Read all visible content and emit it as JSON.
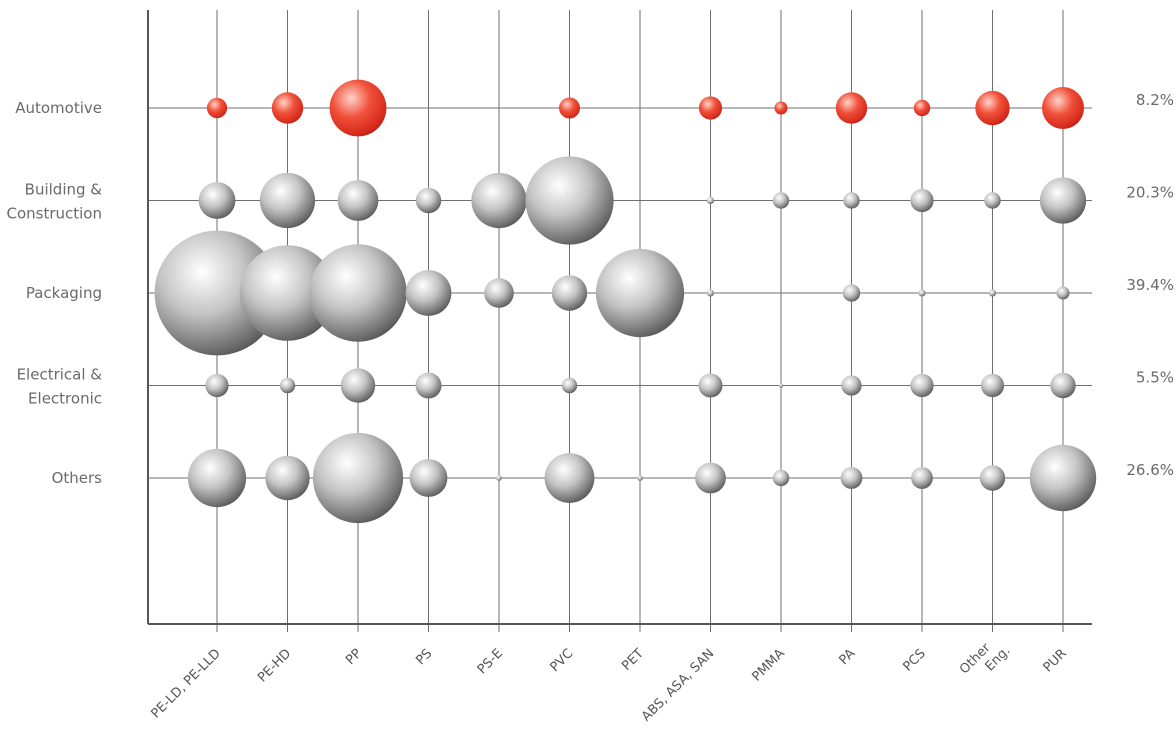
{
  "chart_data": {
    "type": "bubble",
    "title": "",
    "xlabel": "",
    "ylabel": "",
    "categories": [
      "PE-LD, PE-LLD",
      "PE-HD",
      "PP",
      "PS",
      "PS-E",
      "PVC",
      "PET",
      "ABS, ASA, SAN",
      "PMMA",
      "PA",
      "PCS",
      "Other Eng.",
      "PUR"
    ],
    "rows": [
      {
        "label": "Automotive",
        "share": "8.2%",
        "color": "#e8392a",
        "values": [
          1.2,
          2.9,
          9.5,
          null,
          null,
          1.3,
          null,
          1.6,
          0.5,
          2.9,
          0.8,
          3.5,
          5.2
        ]
      },
      {
        "label": "Building & Construction",
        "share": "20.3%",
        "color": "#b8b8b8",
        "values": [
          4.0,
          9.0,
          4.9,
          1.9,
          9.0,
          23.0,
          null,
          0.15,
          0.8,
          0.8,
          1.6,
          0.8,
          6.3
        ]
      },
      {
        "label": "Packaging",
        "share": "39.4%",
        "color": "#b8b8b8",
        "values": [
          46.0,
          27.0,
          28.0,
          6.2,
          2.6,
          3.7,
          23.0,
          0.15,
          null,
          0.9,
          0.15,
          0.15,
          0.5
        ]
      },
      {
        "label": "Electrical & Electronic",
        "share": "5.5%",
        "color": "#b8b8b8",
        "values": [
          1.6,
          0.7,
          3.5,
          2.0,
          null,
          0.7,
          null,
          1.7,
          0.05,
          1.2,
          1.6,
          1.6,
          1.9
        ]
      },
      {
        "label": "Others",
        "share": "26.6%",
        "color": "#b8b8b8",
        "values": [
          10.0,
          5.8,
          24.0,
          4.2,
          0.1,
          7.3,
          0.1,
          2.8,
          0.8,
          1.4,
          1.4,
          1.9,
          13.0
        ]
      }
    ]
  }
}
